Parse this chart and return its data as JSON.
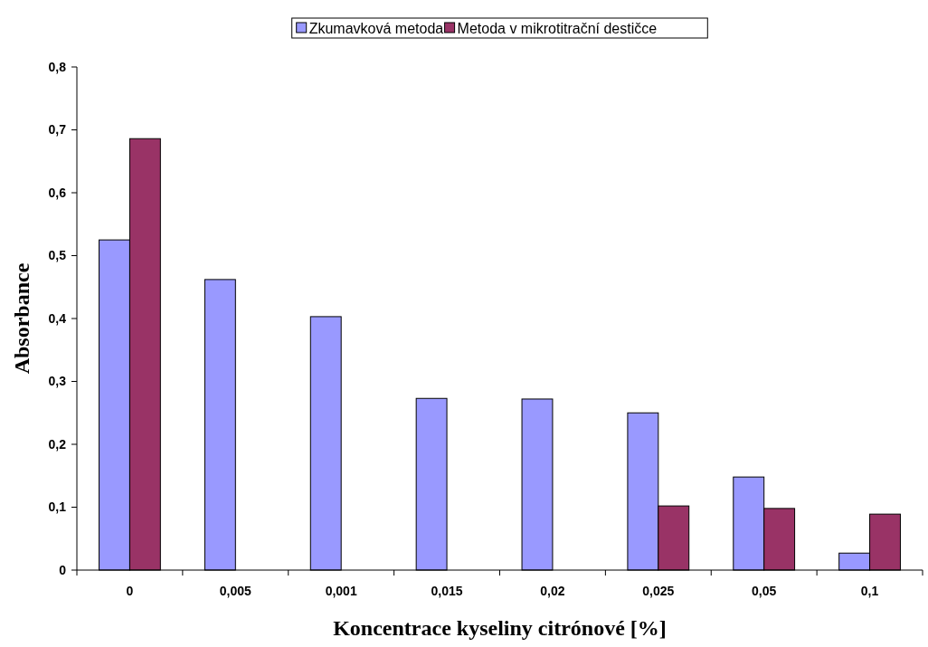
{
  "chart_data": {
    "type": "bar",
    "xlabel": "Koncentrace kyseliny citrónové [%]",
    "ylabel": "Absorbance",
    "categories": [
      "0",
      "0,005",
      "0,001",
      "0,015",
      "0,02",
      "0,025",
      "0,05",
      "0,1"
    ],
    "series": [
      {
        "name": "Zkumavková metoda",
        "color": "#9999ff",
        "values": [
          0.525,
          0.462,
          0.403,
          0.273,
          0.272,
          0.25,
          0.148,
          0.027
        ]
      },
      {
        "name": "Metoda v mikrotitrační destičce",
        "color": "#993366",
        "values": [
          0.686,
          null,
          null,
          null,
          null,
          0.102,
          0.098,
          0.089
        ]
      }
    ],
    "ylim": [
      0,
      0.8
    ],
    "yticks": [
      {
        "value": 0,
        "label": "0"
      },
      {
        "value": 0.1,
        "label": "0,1"
      },
      {
        "value": 0.2,
        "label": "0,2"
      },
      {
        "value": 0.3,
        "label": "0,3"
      },
      {
        "value": 0.4,
        "label": "0,4"
      },
      {
        "value": 0.5,
        "label": "0,5"
      },
      {
        "value": 0.6,
        "label": "0,6"
      },
      {
        "value": 0.7,
        "label": "0,7"
      },
      {
        "value": 0.8,
        "label": "0,8"
      }
    ],
    "legend": "top",
    "grid": false
  }
}
